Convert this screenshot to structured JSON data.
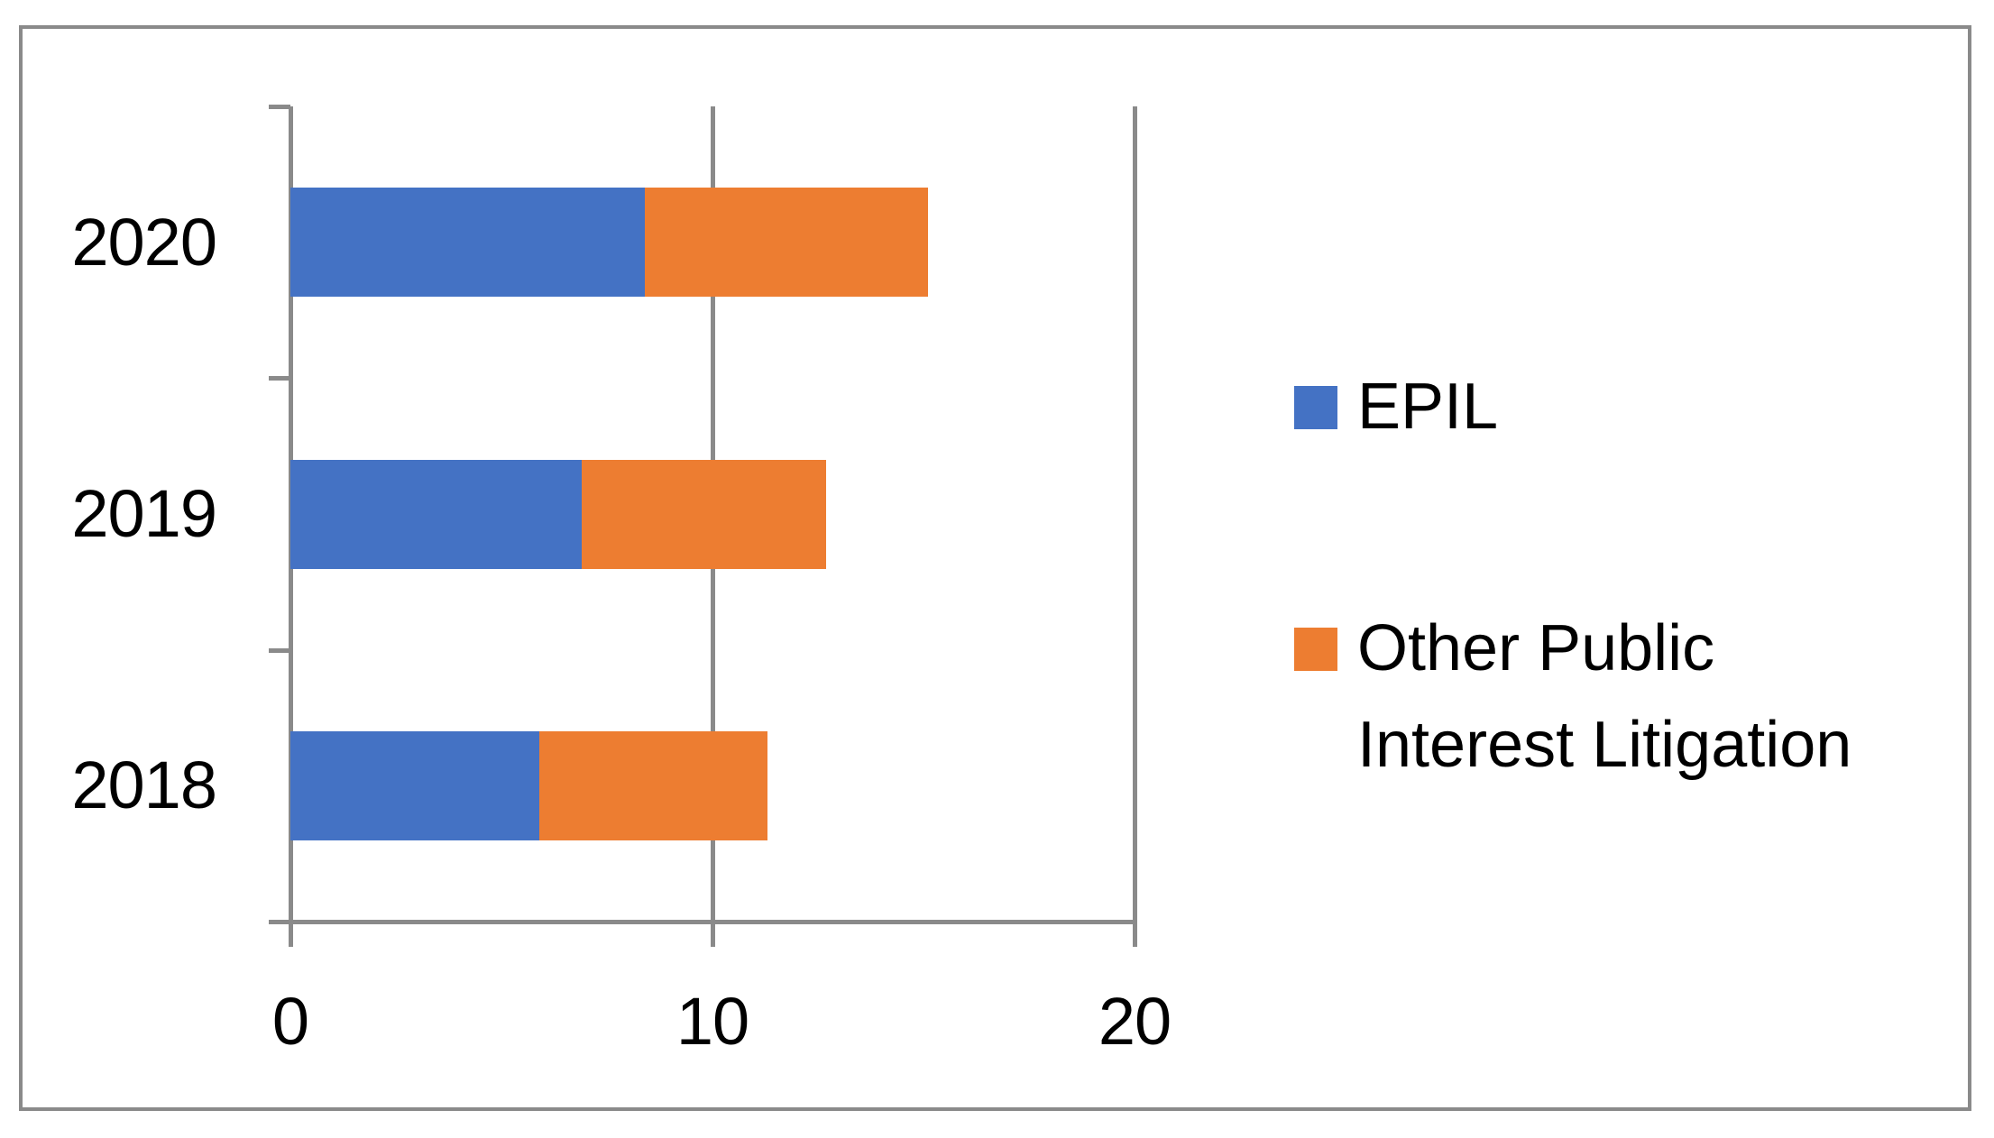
{
  "chart_data": {
    "type": "bar",
    "orientation": "horizontal",
    "stacked": true,
    "title": "",
    "xlabel": "",
    "ylabel": "",
    "categories": [
      "2020",
      "2019",
      "2018"
    ],
    "series": [
      {
        "name": "EPIL",
        "color": "#4472C4",
        "values": [
          8.4,
          6.9,
          5.9
        ]
      },
      {
        "name": "Other Public Interest Litigation",
        "color": "#ED7D31",
        "values": [
          6.7,
          5.8,
          5.4
        ]
      }
    ],
    "totals": [
      15.1,
      12.7,
      11.3
    ],
    "x_ticks": [
      0,
      10,
      20
    ],
    "xlim": [
      0,
      20
    ],
    "grid": true,
    "legend_position": "right"
  },
  "legend": {
    "items": [
      {
        "label": "EPIL",
        "color": "#4472C4"
      },
      {
        "label": "Other Public Interest Litigation",
        "color": "#ED7D31"
      }
    ]
  },
  "colors": {
    "epil": "#4472C4",
    "other": "#ED7D31",
    "axis": "#8a8a8a",
    "border": "#8a8a8a",
    "text": "#000000",
    "background": "#ffffff"
  }
}
